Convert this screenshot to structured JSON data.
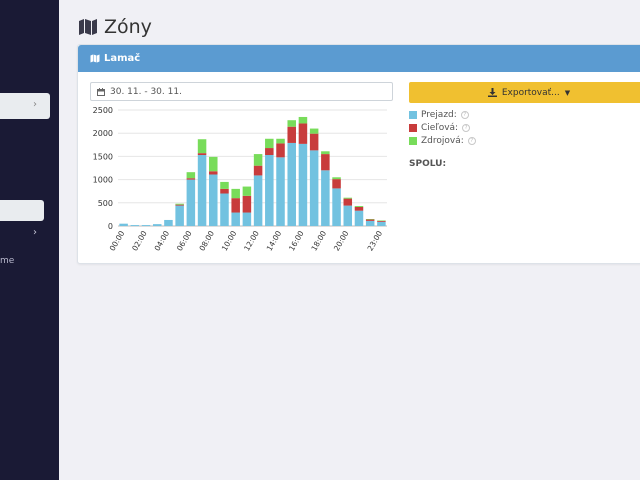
{
  "sidebar": {
    "item_text": "me"
  },
  "page": {
    "title": "Zóny"
  },
  "panel": {
    "title": "Lamač",
    "date_range": "30. 11. - 30. 11.",
    "export_label": "Exportovať...",
    "legend": [
      {
        "label": "Prejazd:",
        "color": "#72c2e0"
      },
      {
        "label": "Cieľová:",
        "color": "#c83c3c"
      },
      {
        "label": "Zdrojová:",
        "color": "#78dc5a"
      }
    ],
    "total_label": "SPOLU:"
  },
  "colors": {
    "sidebar": "#1a1a35",
    "header": "#5b9bd1",
    "export": "#f0c030"
  },
  "chart_data": {
    "type": "bar",
    "stacked": true,
    "categories": [
      "00:00",
      "01:00",
      "02:00",
      "03:00",
      "04:00",
      "05:00",
      "06:00",
      "07:00",
      "08:00",
      "09:00",
      "10:00",
      "11:00",
      "12:00",
      "13:00",
      "14:00",
      "15:00",
      "16:00",
      "17:00",
      "18:00",
      "19:00",
      "20:00",
      "21:00",
      "22:00",
      "23:00"
    ],
    "tick_labels": [
      "00:00",
      "02:00",
      "04:00",
      "06:00",
      "08:00",
      "10:00",
      "12:00",
      "14:00",
      "16:00",
      "18:00",
      "20:00",
      "23:00"
    ],
    "series": [
      {
        "name": "Prejazd:",
        "color": "#72c2e0",
        "values": [
          50,
          20,
          20,
          40,
          130,
          440,
          1000,
          1530,
          1110,
          700,
          290,
          290,
          1090,
          1530,
          1480,
          1790,
          1770,
          1630,
          1200,
          810,
          440,
          330,
          110,
          90
        ]
      },
      {
        "name": "Cieľová:",
        "color": "#c83c3c",
        "values": [
          0,
          0,
          0,
          0,
          0,
          20,
          30,
          40,
          70,
          100,
          310,
          360,
          210,
          150,
          300,
          350,
          440,
          360,
          350,
          200,
          150,
          80,
          30,
          20
        ]
      },
      {
        "name": "Zdrojová:",
        "color": "#78dc5a",
        "values": [
          0,
          0,
          0,
          0,
          0,
          20,
          130,
          300,
          310,
          150,
          200,
          200,
          250,
          200,
          100,
          140,
          140,
          110,
          60,
          40,
          20,
          20,
          10,
          10
        ]
      }
    ],
    "yticks": [
      0,
      500,
      1000,
      1500,
      2000,
      2500
    ],
    "ylim": [
      0,
      2500
    ],
    "grid": true
  }
}
